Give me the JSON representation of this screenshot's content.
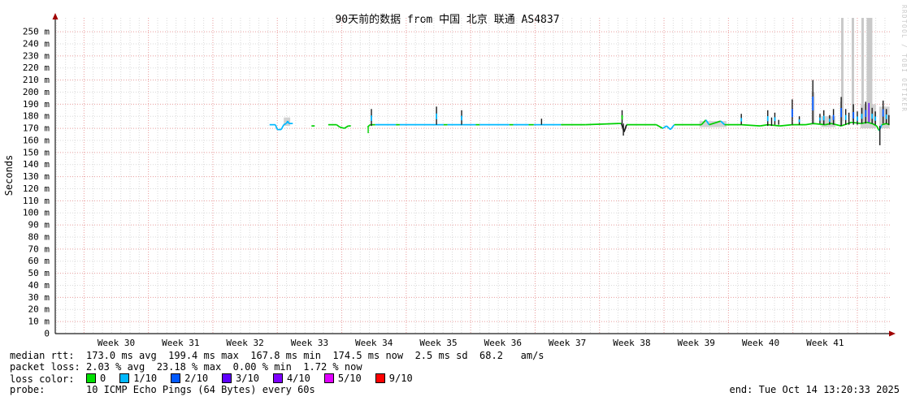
{
  "title": "90天前的数据 from 中国 北京 联通 AS4837",
  "watermark": "RRDTOOL / TOBI OETIKER",
  "y_axis": {
    "label": "Seconds"
  },
  "footer": {
    "end_label": "end: Tue Oct 14 13:20:33 2025"
  },
  "legend": {
    "median_rtt": {
      "label": "median rtt:",
      "text": "173.0 ms avg  199.4 ms max  167.8 ms min  174.5 ms now  2.5 ms sd  68.2   am/s"
    },
    "packet_loss": {
      "label": "packet loss:",
      "text": "2.03 % avg  23.18 % max  0.00 % min  1.72 % now"
    },
    "loss_color": {
      "label": "loss color:",
      "items": [
        {
          "label": "0",
          "color": "#00e000"
        },
        {
          "label": "1/10",
          "color": "#00b8ff"
        },
        {
          "label": "2/10",
          "color": "#0059ff"
        },
        {
          "label": "3/10",
          "color": "#5f00ff"
        },
        {
          "label": "4/10",
          "color": "#7e00ff"
        },
        {
          "label": "5/10",
          "color": "#e000ff"
        },
        {
          "label": "9/10",
          "color": "#ff0000"
        }
      ]
    },
    "probe": {
      "label": "probe:",
      "text": "10 ICMP Echo Pings (64 Bytes) every 60s"
    }
  },
  "chart_data": {
    "type": "line",
    "title": "90天前的数据 from 中国 北京 联通 AS4837",
    "ylabel": "Seconds",
    "y_unit": "milliseconds",
    "ylim": [
      0,
      261
    ],
    "x_unit": "ISO week number",
    "xlim": [
      29.06,
      42.03
    ],
    "x_tick_labels": [
      "Week 30",
      "Week 31",
      "Week 32",
      "Week 33",
      "Week 34",
      "Week 35",
      "Week 36",
      "Week 37",
      "Week 38",
      "Week 39",
      "Week 40",
      "Week 41"
    ],
    "y_tick_labels": [
      "0",
      "10 m",
      "20 m",
      "30 m",
      "40 m",
      "50 m",
      "60 m",
      "70 m",
      "80 m",
      "90 m",
      "100 m",
      "110 m",
      "120 m",
      "130 m",
      "140 m",
      "150 m",
      "160 m",
      "170 m",
      "180 m",
      "190 m",
      "200 m",
      "210 m",
      "220 m",
      "230 m",
      "240 m",
      "250 m"
    ],
    "y_tick_step_ms": 10,
    "grid": {
      "h_major_color": "#e89c9c",
      "h_minor_color": "#d9d9d9",
      "v_week_color": "#e89c9c",
      "v_day_color": "#d9d9d9",
      "dashed": true
    },
    "colors": {
      "g": "#00d000",
      "c": "#00b8ff",
      "b": "#0059ff",
      "p": "#5f00ff",
      "k": "#1b1b1b",
      "smoke": "#c8c8c8",
      "nodata": "#c9c9c9",
      "axis": "#1a1a1a",
      "arrow": "#a00000"
    },
    "stats": {
      "avg_ms": 173.0,
      "max_ms": 199.4,
      "min_ms": 167.8,
      "now_ms": 174.5,
      "sd_ms": 2.5,
      "loss_avg_pct": 2.03,
      "loss_max_pct": 23.18,
      "loss_min_pct": 0.0,
      "loss_now_pct": 1.72
    },
    "median_runs": [
      [
        [
          32.38,
          173,
          "c"
        ],
        [
          32.47,
          173,
          "c"
        ],
        [
          32.5,
          169,
          "c"
        ],
        [
          32.56,
          169,
          "c"
        ],
        [
          32.6,
          173,
          "c"
        ],
        [
          32.64,
          174,
          "c"
        ],
        [
          32.66,
          176,
          "c"
        ],
        [
          32.68,
          174,
          "c"
        ],
        [
          32.74,
          174,
          "c"
        ]
      ],
      [
        [
          33.03,
          172,
          "g"
        ],
        [
          33.08,
          172,
          "g"
        ]
      ],
      [
        [
          33.29,
          173,
          "g"
        ],
        [
          33.42,
          173,
          "g"
        ],
        [
          33.47,
          171,
          "g"
        ],
        [
          33.54,
          170,
          "g"
        ],
        [
          33.6,
          172,
          "g"
        ],
        [
          33.64,
          172,
          "g"
        ]
      ],
      [
        [
          33.9,
          171,
          "g"
        ],
        [
          33.94,
          173,
          "g"
        ],
        [
          34.02,
          173,
          "c"
        ],
        [
          34.34,
          173,
          "g"
        ],
        [
          34.4,
          173,
          "c"
        ],
        [
          34.88,
          173,
          "c"
        ],
        [
          35.0,
          173,
          "c"
        ],
        [
          35.08,
          173,
          "g"
        ],
        [
          35.14,
          173,
          "c"
        ],
        [
          35.38,
          173,
          "c"
        ],
        [
          35.58,
          173,
          "g"
        ],
        [
          35.64,
          173,
          "c"
        ],
        [
          36.1,
          173,
          "g"
        ],
        [
          36.16,
          173,
          "c"
        ],
        [
          36.4,
          173,
          "g"
        ],
        [
          36.48,
          173,
          "c"
        ],
        [
          36.62,
          173,
          "c"
        ],
        [
          36.9,
          173,
          "g"
        ],
        [
          37.28,
          173,
          "g"
        ],
        [
          37.8,
          174,
          "g"
        ],
        [
          37.84,
          174,
          "k"
        ],
        [
          37.88,
          167,
          "k"
        ],
        [
          37.92,
          173,
          "g"
        ],
        [
          38.38,
          173,
          "g"
        ],
        [
          38.48,
          170,
          "c"
        ],
        [
          38.54,
          172,
          "c"
        ],
        [
          38.6,
          169,
          "c"
        ],
        [
          38.66,
          173,
          "g"
        ],
        [
          39.08,
          173,
          "g"
        ],
        [
          39.15,
          177,
          "c"
        ],
        [
          39.2,
          173,
          "g"
        ],
        [
          39.38,
          176,
          "c"
        ],
        [
          39.44,
          173,
          "g"
        ],
        [
          39.7,
          173,
          "g"
        ],
        [
          39.99,
          172,
          "g"
        ],
        [
          40.11,
          173,
          "g"
        ],
        [
          40.3,
          172,
          "g"
        ],
        [
          40.49,
          173,
          "g"
        ],
        [
          40.7,
          173,
          "g"
        ],
        [
          40.81,
          174,
          "g"
        ],
        [
          41.0,
          173,
          "g"
        ],
        [
          41.1,
          174,
          "g"
        ],
        [
          41.25,
          172,
          "g"
        ],
        [
          41.41,
          175,
          "g"
        ],
        [
          41.56,
          174,
          "g"
        ],
        [
          41.65,
          175,
          "g"
        ],
        [
          41.73,
          174,
          "g"
        ],
        [
          41.8,
          172,
          "g"
        ],
        [
          41.84,
          168,
          "c"
        ],
        [
          41.88,
          173,
          "g"
        ],
        [
          41.95,
          174,
          "g"
        ],
        [
          42.0,
          173,
          "g"
        ]
      ]
    ],
    "spikes": [
      [
        33.96,
        172,
        186,
        "k",
        "c"
      ],
      [
        33.91,
        171,
        166,
        "g",
        null
      ],
      [
        34.97,
        173,
        188,
        "k",
        "c"
      ],
      [
        35.36,
        173,
        185,
        "k",
        "c"
      ],
      [
        36.6,
        173,
        178,
        "k",
        null
      ],
      [
        37.85,
        174,
        185,
        "k",
        "g"
      ],
      [
        37.87,
        174,
        164,
        "k",
        null
      ],
      [
        39.7,
        173,
        182,
        "k",
        "c"
      ],
      [
        40.11,
        172,
        185,
        "k",
        "c"
      ],
      [
        40.17,
        172,
        179,
        "k",
        null
      ],
      [
        40.22,
        173,
        183,
        "k",
        "c"
      ],
      [
        40.28,
        173,
        177,
        "k",
        null
      ],
      [
        40.49,
        173,
        194,
        "k",
        "b"
      ],
      [
        40.6,
        173,
        180,
        "k",
        "c"
      ],
      [
        40.81,
        174,
        210,
        "k",
        "b"
      ],
      [
        40.92,
        174,
        182,
        "k",
        "c"
      ],
      [
        40.98,
        173,
        185,
        "k",
        "c"
      ],
      [
        41.07,
        173,
        181,
        "k",
        "c"
      ],
      [
        41.13,
        173,
        186,
        "k",
        "b"
      ],
      [
        41.25,
        172,
        196,
        "k",
        "b"
      ],
      [
        41.32,
        173,
        186,
        "k",
        "c"
      ],
      [
        41.37,
        173,
        183,
        "k",
        null
      ],
      [
        41.44,
        173,
        190,
        "k",
        "b"
      ],
      [
        41.5,
        173,
        184,
        "k",
        "c"
      ],
      [
        41.57,
        174,
        187,
        "k",
        "c"
      ],
      [
        41.63,
        174,
        192,
        "k",
        "b"
      ],
      [
        41.68,
        175,
        191,
        "p",
        null
      ],
      [
        41.73,
        174,
        187,
        "k",
        "c"
      ],
      [
        41.78,
        173,
        184,
        "k",
        "c"
      ],
      [
        41.85,
        172,
        156,
        "k",
        null
      ],
      [
        41.9,
        174,
        193,
        "k",
        "b"
      ],
      [
        41.95,
        174,
        186,
        "k",
        "c"
      ],
      [
        41.99,
        173,
        181,
        "k",
        null
      ]
    ],
    "smoke_bands": [
      [
        32.6,
        32.7,
        172,
        179
      ],
      [
        39.05,
        39.47,
        171,
        176
      ],
      [
        40.79,
        40.84,
        173,
        200
      ],
      [
        40.94,
        41.16,
        171,
        180
      ],
      [
        41.23,
        41.28,
        172,
        192
      ],
      [
        41.55,
        41.79,
        170,
        190
      ],
      [
        41.84,
        42.0,
        170,
        188
      ]
    ],
    "nodata_bars": {
      "week_ranges": [
        [
          41.248,
          41.286
        ],
        [
          41.412,
          41.45
        ],
        [
          41.563,
          41.601
        ],
        [
          41.645,
          41.733
        ]
      ],
      "bottom_ms": 176
    }
  }
}
